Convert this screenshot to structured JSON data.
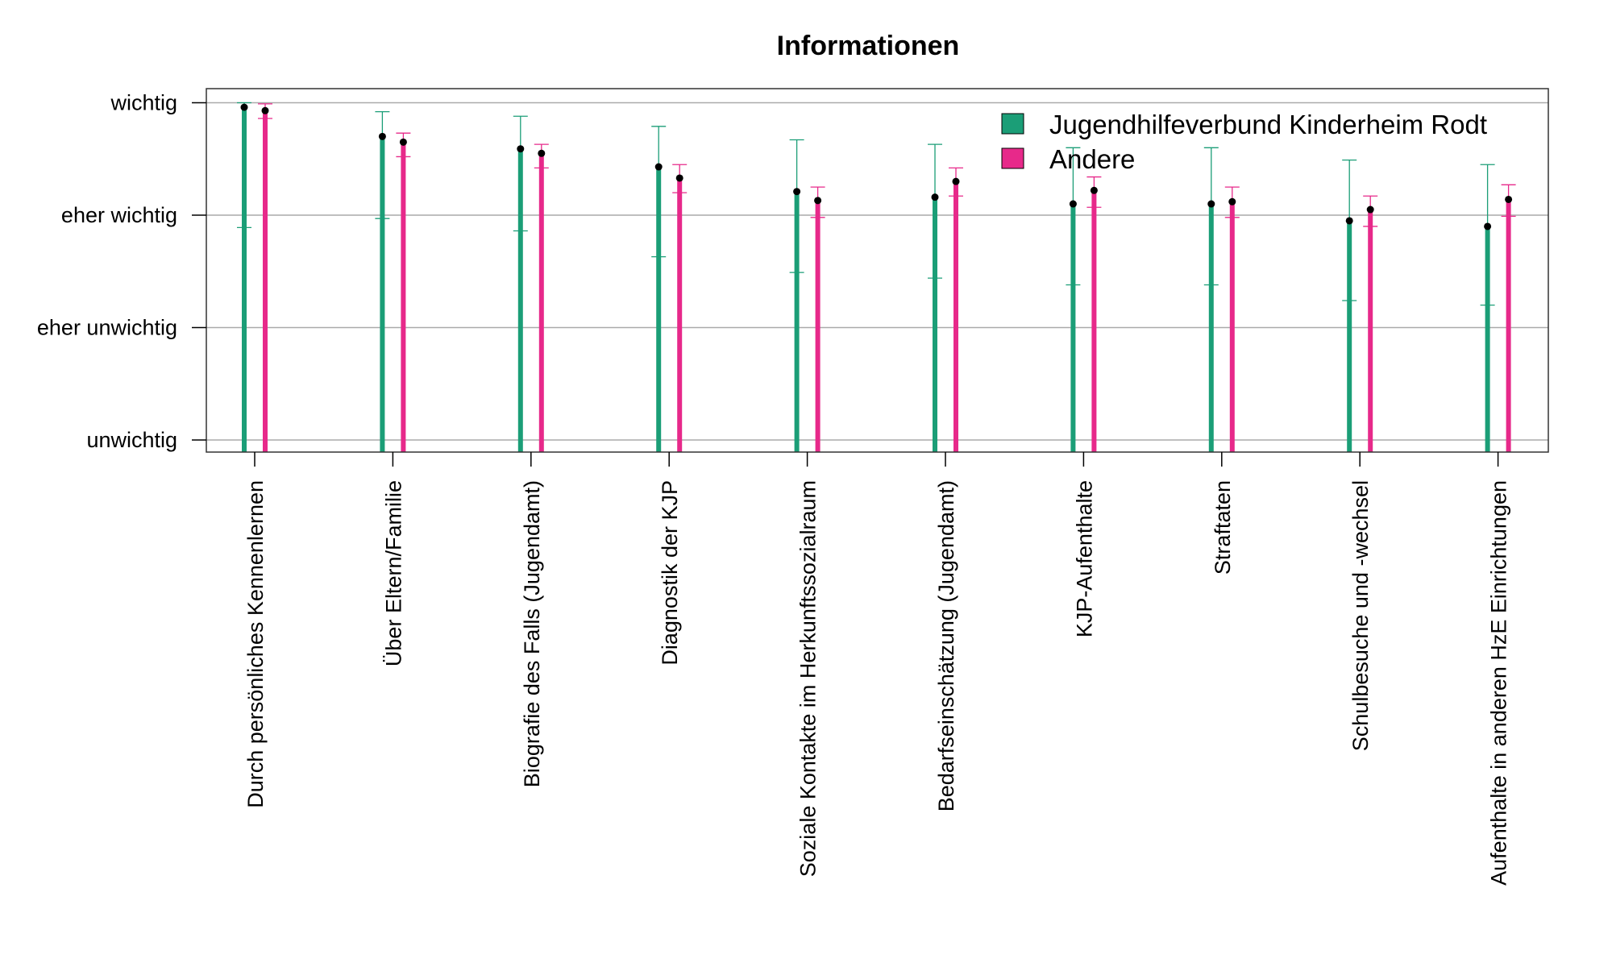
{
  "chart_data": {
    "type": "bar",
    "title": "Informationen",
    "xlabel": "",
    "ylabel": "",
    "y_ticks": [
      "unwichtig",
      "eher unwichtig",
      "eher wichtig",
      "wichtig"
    ],
    "ylim": [
      1,
      4
    ],
    "grid": "horizontal",
    "legend_position": "top-right",
    "categories": [
      "Durch persönliches Kennenlernen",
      "Über Eltern/Familie",
      "Biografie des Falls (Jugendamt)",
      "Diagnostik der KJP",
      "Soziale Kontakte im Herkunftssozialraum",
      "Bedarfseinschätzung (Jugendamt)",
      "KJP-Aufenthalte",
      "Straftaten",
      "Schulbesuche und -wechsel",
      "Aufenthalte in anderen HzE Einrichtungen"
    ],
    "series": [
      {
        "name": "Jugendhilfeverbund Kinderheim Rodt",
        "color": "#1b9e77",
        "values": [
          3.96,
          3.7,
          3.59,
          3.43,
          3.21,
          3.16,
          3.1,
          3.1,
          2.95,
          2.9
        ],
        "err_lower": [
          2.89,
          2.97,
          2.86,
          2.63,
          2.49,
          2.44,
          2.38,
          2.38,
          2.24,
          2.2
        ],
        "err_upper": [
          4.0,
          3.92,
          3.88,
          3.79,
          3.67,
          3.63,
          3.6,
          3.6,
          3.49,
          3.45
        ]
      },
      {
        "name": "Andere",
        "color": "#e7298a",
        "values": [
          3.93,
          3.65,
          3.55,
          3.33,
          3.13,
          3.3,
          3.22,
          3.12,
          3.05,
          3.14
        ],
        "err_lower": [
          3.86,
          3.52,
          3.42,
          3.2,
          2.98,
          3.17,
          3.07,
          2.98,
          2.9,
          2.99
        ],
        "err_upper": [
          3.99,
          3.73,
          3.63,
          3.45,
          3.25,
          3.42,
          3.34,
          3.25,
          3.17,
          3.27
        ]
      }
    ]
  }
}
